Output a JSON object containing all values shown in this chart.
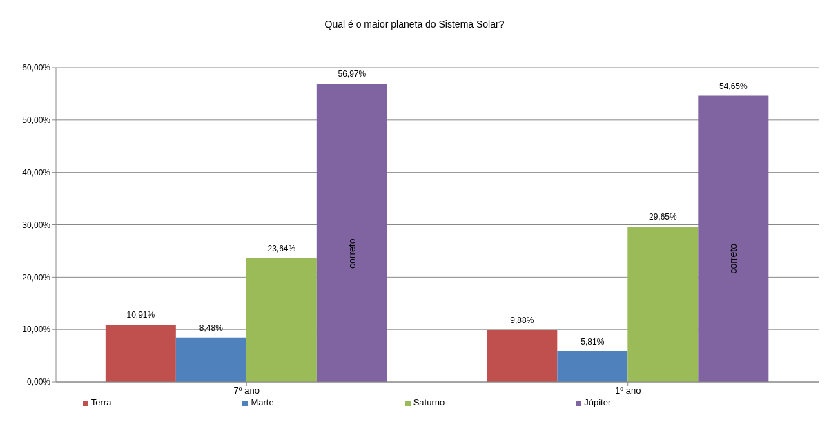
{
  "chart_data": {
    "type": "bar",
    "title": "Qual é o maior planeta do Sistema Solar?",
    "categories": [
      "7º ano",
      "1º ano"
    ],
    "series": [
      {
        "name": "Terra",
        "color": "#c0504d",
        "values": [
          10.91,
          9.88
        ],
        "value_labels": [
          "10,91%",
          "9,88%"
        ]
      },
      {
        "name": "Marte",
        "color": "#4f81bd",
        "values": [
          8.48,
          5.81
        ],
        "value_labels": [
          "8,48%",
          "5,81%"
        ]
      },
      {
        "name": "Saturno",
        "color": "#9bbb59",
        "values": [
          23.64,
          29.65
        ],
        "value_labels": [
          "23,64%",
          "29,65%"
        ]
      },
      {
        "name": "Júpiter",
        "color": "#8064a2",
        "values": [
          56.97,
          54.65
        ],
        "value_labels": [
          "56,97%",
          "54,65%"
        ]
      }
    ],
    "ylim": [
      0,
      60
    ],
    "yticks": [
      {
        "value": 0,
        "label": "0,00%"
      },
      {
        "value": 10,
        "label": "10,00%"
      },
      {
        "value": 20,
        "label": "20,00%"
      },
      {
        "value": 30,
        "label": "30,00%"
      },
      {
        "value": 40,
        "label": "40,00%"
      },
      {
        "value": 50,
        "label": "50,00%"
      },
      {
        "value": 60,
        "label": "60,00%"
      }
    ],
    "grid": "y",
    "legend": "bottom",
    "annotations": [
      "correto",
      "correto"
    ]
  }
}
